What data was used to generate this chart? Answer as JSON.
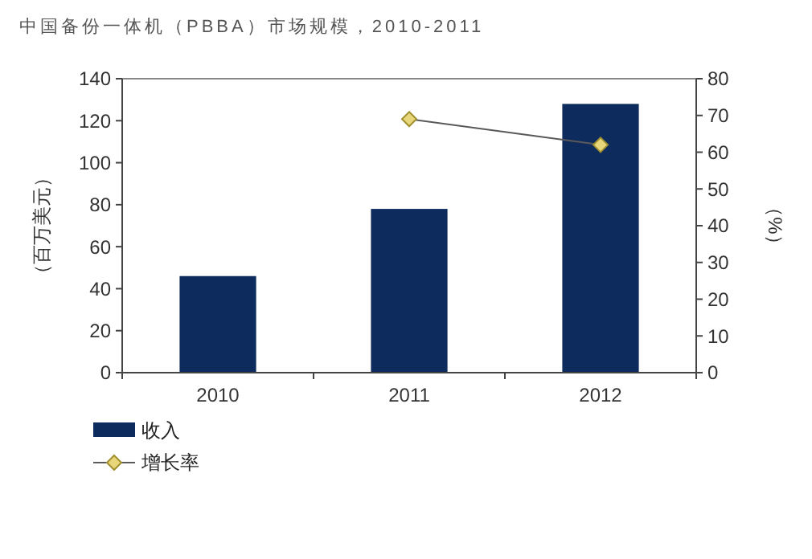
{
  "chart_data": {
    "type": "bar",
    "title": "中国备份一体机（PBBA）市场规模，2010-2011",
    "ylabel": "（百万美元）",
    "y2label": "（%）",
    "categories": [
      "2010",
      "2011",
      "2012"
    ],
    "series": [
      {
        "name": "收入",
        "color": "#0e2b5e",
        "values": [
          46,
          78,
          128
        ]
      },
      {
        "name": "增长率",
        "type": "line",
        "axis": "y2",
        "color": "#5a5a5a",
        "marker": "diamond",
        "values": [
          null,
          69,
          62
        ]
      }
    ],
    "ylim": [
      0,
      140
    ],
    "yticks": [
      0,
      20,
      40,
      60,
      80,
      100,
      120,
      140
    ],
    "y2lim": [
      0,
      80
    ],
    "y2ticks": [
      0,
      10,
      20,
      30,
      40,
      50,
      60,
      70,
      80
    ],
    "grid": false,
    "legend": "bottom left"
  }
}
